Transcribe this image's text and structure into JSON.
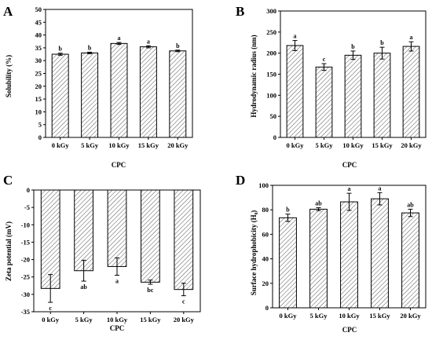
{
  "chart_data": [
    {
      "type": "bar",
      "panel": "A",
      "categories": [
        "0 kGy",
        "5 kGy",
        "10 kGy",
        "15 kGy",
        "20 kGy"
      ],
      "values": [
        32.5,
        33.0,
        36.7,
        35.4,
        33.8
      ],
      "errors": [
        0.4,
        0.3,
        0.4,
        0.4,
        0.3
      ],
      "letters": [
        "b",
        "b",
        "a",
        "a",
        "b"
      ],
      "xlabel": "CPC",
      "ylabel": "Solubility (%)",
      "ylim": [
        0,
        50
      ],
      "yticks": [
        0,
        5,
        10,
        15,
        20,
        25,
        30,
        35,
        40,
        45,
        50
      ]
    },
    {
      "type": "bar",
      "panel": "B",
      "categories": [
        "0 kGy",
        "5 kGy",
        "10 kGy",
        "15 kGy",
        "20 kGy"
      ],
      "values": [
        218,
        167,
        195,
        200,
        216
      ],
      "errors": [
        12,
        8,
        10,
        14,
        11
      ],
      "letters": [
        "a",
        "c",
        "b",
        "b",
        "a"
      ],
      "xlabel": "CPC",
      "ylabel": "Hydrodynamic radius (nm)",
      "ylim": [
        0,
        300
      ],
      "yticks": [
        0,
        50,
        100,
        150,
        200,
        250,
        300
      ]
    },
    {
      "type": "bar",
      "panel": "C",
      "categories": [
        "0 kGy",
        "5 kGy",
        "10 kGy",
        "15 kGy",
        "20 kGy"
      ],
      "values": [
        -28.3,
        -23.2,
        -22.0,
        -26.5,
        -28.6
      ],
      "errors": [
        4.0,
        3.0,
        2.5,
        0.6,
        1.8
      ],
      "letters": [
        "c",
        "ab",
        "a",
        "bc",
        "c"
      ],
      "xlabel": "CPC",
      "ylabel": "Zeta potential (mV)",
      "ylim": [
        -35,
        0
      ],
      "yticks": [
        0,
        -5,
        -10,
        -15,
        -20,
        -25,
        -30,
        -35
      ]
    },
    {
      "type": "bar",
      "panel": "D",
      "categories": [
        "0 kGy",
        "5 kGy",
        "10 kGy",
        "15 kGy",
        "20 kGy"
      ],
      "values": [
        73.5,
        80.5,
        86.5,
        89.0,
        77.5
      ],
      "errors": [
        3.0,
        1.2,
        7.0,
        5.0,
        3.0
      ],
      "letters": [
        "b",
        "ab",
        "a",
        "a",
        "ab"
      ],
      "xlabel": "CPC",
      "ylabel": "Surface hydrophobicity (H₀)",
      "ylim": [
        0,
        100
      ],
      "yticks": [
        0,
        20,
        40,
        60,
        80,
        100
      ]
    }
  ],
  "colors": {
    "bar_fill": "#ffffff",
    "hatch": "#555555",
    "axis": "#000000"
  }
}
